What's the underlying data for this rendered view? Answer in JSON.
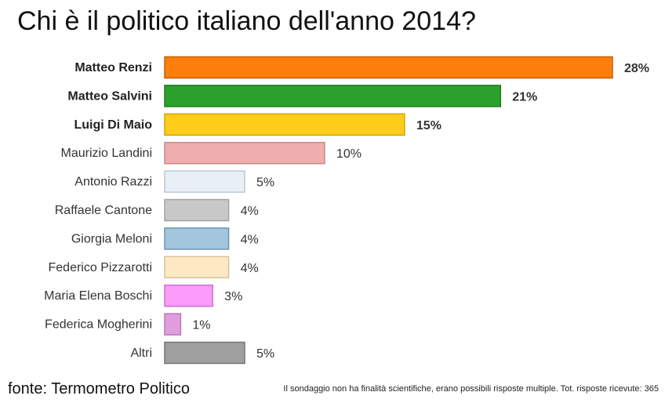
{
  "title": "Chi è il politico italiano dell'anno 2014?",
  "source": "fonte: Termometro Politico",
  "note": "Il sondaggio non ha finalità scientifiche, erano possibili risposte multiple. Tot. risposte ricevute: 365",
  "chart_data": {
    "type": "bar",
    "orientation": "horizontal",
    "title": "Chi è il politico italiano dell'anno 2014?",
    "xlabel": "",
    "ylabel": "",
    "unit": "%",
    "xlim": [
      0,
      28
    ],
    "grid": false,
    "legend": "none",
    "categories": [
      "Matteo Renzi",
      "Matteo Salvini",
      "Luigi Di Maio",
      "Maurizio Landini",
      "Antonio Razzi",
      "Raffaele Cantone",
      "Giorgia Meloni",
      "Federico Pizzarotti",
      "Maria Elena Boschi",
      "Federica Mogherini",
      "Altri"
    ],
    "values": [
      28,
      21,
      15,
      10,
      5,
      4,
      4,
      4,
      3,
      1,
      5
    ],
    "value_labels": [
      "28%",
      "21%",
      "15%",
      "10%",
      "5%",
      "4%",
      "4%",
      "4%",
      "3%",
      "1%",
      "5%"
    ],
    "bold_categories": [
      "Matteo Renzi",
      "Matteo Salvini",
      "Luigi Di Maio"
    ],
    "colors": [
      "#ff7f0e",
      "#2ca02c",
      "#ffcc1a",
      "#f0adae",
      "#e8f0f6",
      "#c8c8c8",
      "#a2c6de",
      "#fde8c4",
      "#fb9cfb",
      "#e09ee0",
      "#9f9f9f"
    ],
    "border_colors": [
      "#c65e00",
      "#1c7a1c",
      "#d4a300",
      "#c98a8b",
      "#b9c9d6",
      "#a3a3a3",
      "#6d95b2",
      "#d9c29a",
      "#cf6fcf",
      "#b877b8",
      "#737373"
    ]
  }
}
